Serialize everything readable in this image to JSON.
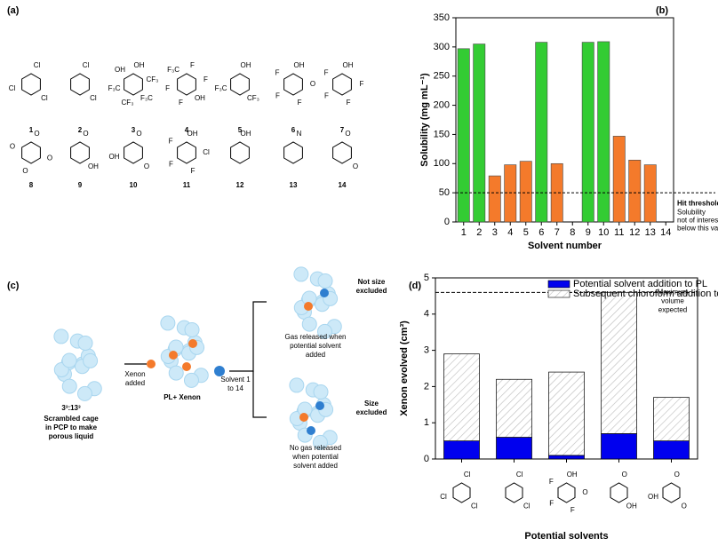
{
  "structures": {
    "panel_label": "(a)",
    "compounds": [
      {
        "number": "1",
        "atoms": [
          "Cl",
          "Cl",
          "Cl"
        ]
      },
      {
        "number": "2",
        "atoms": [
          "Cl",
          "Cl"
        ]
      },
      {
        "number": "3",
        "atoms": [
          "OH",
          "CF₃",
          "F₃C",
          "CF₃",
          "F₃C",
          "OH"
        ]
      },
      {
        "number": "4",
        "atoms": [
          "F",
          "F",
          "OH",
          "F",
          "F",
          "F₃C"
        ]
      },
      {
        "number": "5",
        "atoms": [
          "OH",
          "CF₃",
          "F₃C"
        ]
      },
      {
        "number": "6",
        "atoms": [
          "OH",
          "O",
          "F",
          "F",
          "F"
        ]
      },
      {
        "number": "7",
        "atoms": [
          "OH",
          "F",
          "F",
          "F",
          "F"
        ]
      },
      {
        "number": "8",
        "atoms": [
          "O",
          "O",
          "O",
          "O"
        ]
      },
      {
        "number": "9",
        "atoms": [
          "O",
          "OH"
        ]
      },
      {
        "number": "10",
        "atoms": [
          "O",
          "O",
          "OH"
        ]
      },
      {
        "number": "11",
        "atoms": [
          "OH",
          "Cl",
          "F",
          "F",
          "F"
        ]
      },
      {
        "number": "12",
        "atoms": [
          "OH"
        ]
      },
      {
        "number": "13",
        "atoms": [
          "N"
        ]
      },
      {
        "number": "14",
        "atoms": [
          "O",
          "O"
        ]
      }
    ]
  },
  "diagram": {
    "panel_label": "(c)",
    "start_title": "3³:13³",
    "start_caption": [
      "Scrambled cage",
      "in PCP to make",
      "porous liquid"
    ],
    "xenon_added": [
      "Xenon",
      "added"
    ],
    "middle_caption": "PL+ Xenon",
    "solvent_added": [
      "Solvent 1",
      "to 14"
    ],
    "top_caption": [
      "Gas released when",
      "potential solvent",
      "added"
    ],
    "top_result": [
      "Not size",
      "excluded"
    ],
    "bottom_result": [
      "Size",
      "excluded"
    ],
    "bottom_caption": [
      "No gas released",
      "when potential",
      "solvent added"
    ]
  },
  "chart_data": [
    {
      "type": "bar",
      "panel_label": "(b)",
      "x_label": "Solvent number",
      "y_label": "Solubility (mg mL⁻¹)",
      "categories": [
        "1",
        "2",
        "3",
        "4",
        "5",
        "6",
        "7",
        "8",
        "9",
        "10",
        "11",
        "12",
        "13",
        "14"
      ],
      "values": [
        297,
        305,
        79,
        98,
        104,
        308,
        100,
        null,
        308,
        309,
        147,
        106,
        98,
        null
      ],
      "colors": [
        "#33cc33",
        "#33cc33",
        "#f47a2b",
        "#f47a2b",
        "#f47a2b",
        "#33cc33",
        "#f47a2b",
        "#f47a2b",
        "#33cc33",
        "#33cc33",
        "#f47a2b",
        "#f47a2b",
        "#f47a2b",
        "#f47a2b"
      ],
      "ylim": [
        0,
        350
      ],
      "yticks": [
        0,
        50,
        100,
        150,
        200,
        250,
        300,
        350
      ],
      "threshold": 50,
      "threshold_title": "Hit threshold:",
      "threshold_note": [
        "Solubility",
        "not of interest",
        "below this value"
      ]
    },
    {
      "type": "stacked_bar",
      "panel_label": "(d)",
      "x_label": "Potential solvents",
      "y_label": "Xenon evolved (cm³)",
      "categories": [
        null,
        null,
        null,
        null,
        null
      ],
      "category_structures": [
        [
          "Cl",
          "Cl",
          "Cl"
        ],
        [
          "Cl",
          "Cl"
        ],
        [
          "OH",
          "O",
          "F",
          "F",
          "F"
        ],
        [
          "O",
          "OH"
        ],
        [
          "O",
          "O",
          "OH"
        ]
      ],
      "series": [
        {
          "name": "Potential solvent addition to PL",
          "color": "#0000ee",
          "values": [
            0.5,
            0.6,
            0.1,
            0.7,
            0.5
          ]
        },
        {
          "name": "Subsequent chloroform addition to PL",
          "color": "hatch",
          "values": [
            2.4,
            1.6,
            2.3,
            3.9,
            1.2
          ]
        }
      ],
      "ylim": [
        0,
        5
      ],
      "yticks": [
        0,
        1,
        2,
        3,
        4,
        5
      ],
      "reference": 4.6,
      "reference_label": [
        "Maximum",
        "volume",
        "expected"
      ]
    }
  ]
}
